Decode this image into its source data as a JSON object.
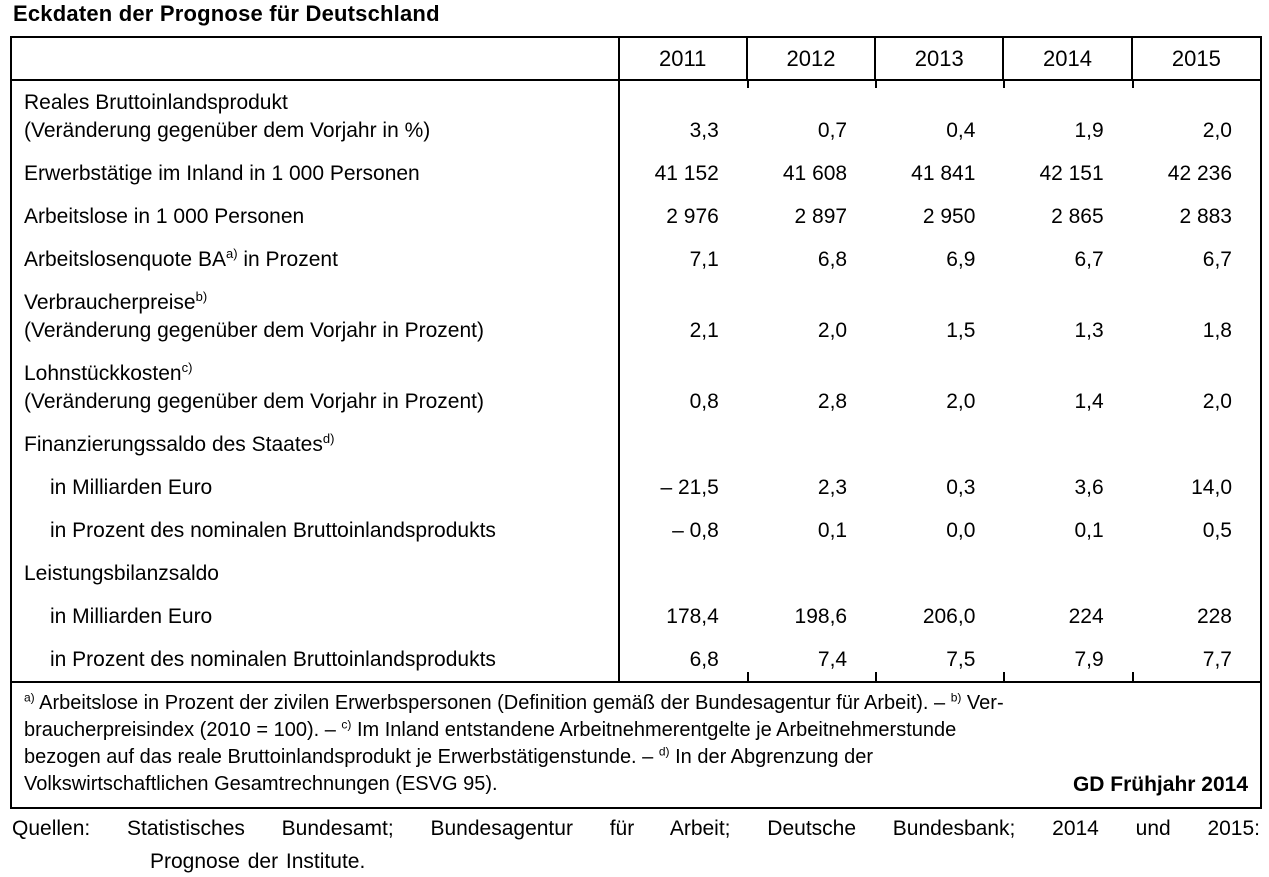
{
  "title": "Eckdaten der Prognose für Deutschland",
  "table": {
    "col_headers": [
      "2011",
      "2012",
      "2013",
      "2014",
      "2015"
    ],
    "rows": [
      {
        "label": "Reales Bruttoinlandsprodukt",
        "label2": "(Veränderung gegenüber dem Vorjahr in %)",
        "values": [
          "3,3",
          "0,7",
          "0,4",
          "1,9",
          "2,0"
        ]
      },
      {
        "label": "Erwerbstätige im Inland in 1 000 Personen",
        "values": [
          "41 152",
          "41 608",
          "41 841",
          "42 151",
          "42 236"
        ]
      },
      {
        "label": "Arbeitslose in 1 000 Personen",
        "values": [
          "2 976",
          "2 897",
          "2 950",
          "2 865",
          "2 883"
        ]
      },
      {
        "label": "Arbeitslosenquote BA",
        "sup": "a)",
        "label_suffix": " in Prozent",
        "values": [
          "7,1",
          "6,8",
          "6,9",
          "6,7",
          "6,7"
        ]
      },
      {
        "label": "Verbraucherpreise",
        "sup": "b)",
        "label2": "(Veränderung gegenüber dem Vorjahr in Prozent)",
        "values": [
          "2,1",
          "2,0",
          "1,5",
          "1,3",
          "1,8"
        ]
      },
      {
        "label": "Lohnstückkosten",
        "sup": "c)",
        "label2": "(Veränderung gegenüber dem Vorjahr in Prozent)",
        "values": [
          "0,8",
          "2,8",
          "2,0",
          "1,4",
          "2,0"
        ]
      },
      {
        "label": "Finanzierungssaldo des Staates",
        "sup": "d)",
        "values": [
          "",
          "",
          "",
          "",
          ""
        ]
      },
      {
        "label": "in Milliarden Euro",
        "indent": true,
        "values": [
          "– 21,5",
          "2,3",
          "0,3",
          "3,6",
          "14,0"
        ]
      },
      {
        "label": "in Prozent des nominalen Bruttoinlandsprodukts",
        "indent": true,
        "values": [
          "– 0,8",
          "0,1",
          "0,0",
          "0,1",
          "0,5"
        ]
      },
      {
        "label": "Leistungsbilanzsaldo",
        "values": [
          "",
          "",
          "",
          "",
          ""
        ]
      },
      {
        "label": "in Milliarden Euro",
        "indent": true,
        "values": [
          "178,4",
          "198,6",
          "206,0",
          "224",
          "228"
        ]
      },
      {
        "label": "in Prozent des nominalen Bruttoinlandsprodukts",
        "indent": true,
        "values": [
          "6,8",
          "7,4",
          "7,5",
          "7,9",
          "7,7"
        ]
      }
    ]
  },
  "footnotes": {
    "lines": [
      [
        {
          "sup": "a)"
        },
        {
          "t": " Arbeitslose in Prozent der zivilen Erwerbspersonen (Definition gemäß der Bundesagentur für Arbeit). – "
        },
        {
          "sup": "b)"
        },
        {
          "t": " Ver-"
        }
      ],
      [
        {
          "t": "braucherpreisindex (2010 = 100). – "
        },
        {
          "sup": "c)"
        },
        {
          "t": " Im Inland entstandene Arbeitnehmerentgelte je Arbeitnehmerstunde"
        }
      ],
      [
        {
          "t": "bezogen auf das reale Bruttoinlandsprodukt je Erwerbstätigenstunde. – "
        },
        {
          "sup": "d)"
        },
        {
          "t": " In der Abgrenzung der"
        }
      ],
      [
        {
          "t": "Volkswirtschaftlichen Gesamtrechnungen (ESVG 95)."
        }
      ]
    ],
    "stamp": "GD Frühjahr 2014"
  },
  "source": {
    "label": "Quellen:",
    "line1": "Statistisches Bundesamt; Bundesagentur für Arbeit; Deutsche Bundesbank; 2014 und 2015:",
    "line2": "Prognose der Institute."
  },
  "colors": {
    "ink": "#000000",
    "paper": "#ffffff"
  }
}
